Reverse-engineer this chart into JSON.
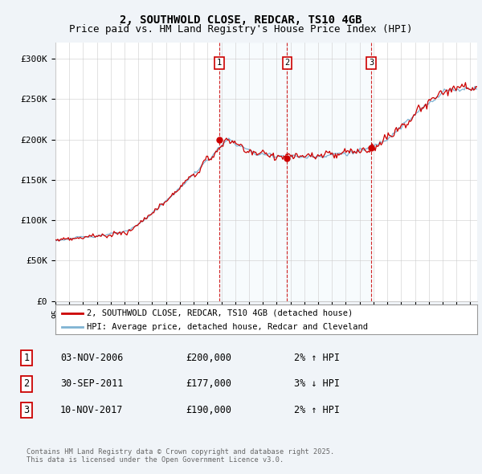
{
  "title": "2, SOUTHWOLD CLOSE, REDCAR, TS10 4GB",
  "subtitle": "Price paid vs. HM Land Registry's House Price Index (HPI)",
  "ylim": [
    0,
    320000
  ],
  "yticks": [
    0,
    50000,
    100000,
    150000,
    200000,
    250000,
    300000
  ],
  "ytick_labels": [
    "£0",
    "£50K",
    "£100K",
    "£150K",
    "£200K",
    "£250K",
    "£300K"
  ],
  "sale_year_nums": [
    2006.84,
    2011.75,
    2017.84
  ],
  "sale_prices": [
    200000,
    177000,
    190000
  ],
  "sale_labels": [
    "1",
    "2",
    "3"
  ],
  "legend_line1": "2, SOUTHWOLD CLOSE, REDCAR, TS10 4GB (detached house)",
  "legend_line2": "HPI: Average price, detached house, Redcar and Cleveland",
  "table_rows": [
    [
      "1",
      "03-NOV-2006",
      "£200,000",
      "2% ↑ HPI"
    ],
    [
      "2",
      "30-SEP-2011",
      "£177,000",
      "3% ↓ HPI"
    ],
    [
      "3",
      "10-NOV-2017",
      "£190,000",
      "2% ↑ HPI"
    ]
  ],
  "footnote": "Contains HM Land Registry data © Crown copyright and database right 2025.\nThis data is licensed under the Open Government Licence v3.0.",
  "line_color": "#cc0000",
  "hpi_color": "#7fb3d3",
  "shade_color": "#d8eaf5",
  "background_color": "#f0f4f8",
  "plot_bg": "#ffffff",
  "grid_color": "#cccccc",
  "title_fontsize": 10,
  "subtitle_fontsize": 9,
  "xmin": 1995,
  "xmax": 2025.5
}
